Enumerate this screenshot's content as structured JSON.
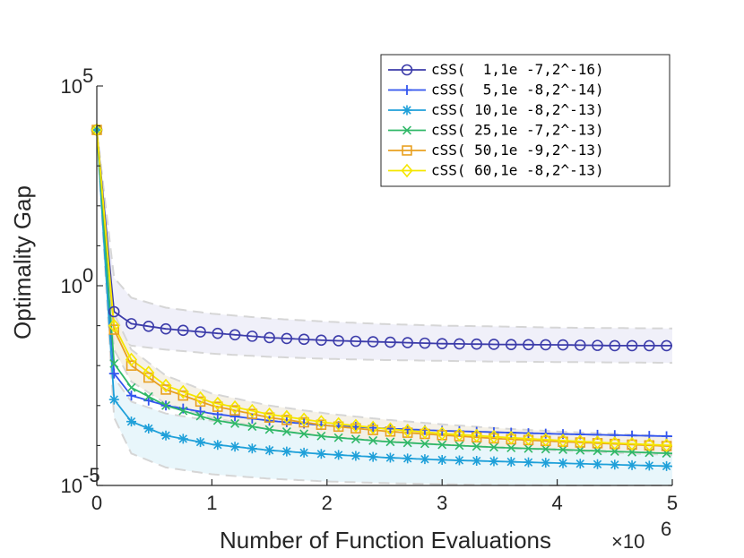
{
  "chart_data": {
    "type": "line",
    "xlabel": "Number of Function Evaluations",
    "x_multiplier": "×10^6",
    "ylabel": "Optimality Gap",
    "y_scale": "log",
    "xlim": [
      0,
      5
    ],
    "ylim_exponents": [
      -5,
      5
    ],
    "x_ticks": [
      "0",
      "1",
      "2",
      "3",
      "4",
      "5"
    ],
    "y_ticks": [
      {
        "exp": 5,
        "base": "10",
        "sup": "5"
      },
      {
        "exp": 0,
        "base": "10",
        "sup": "0"
      },
      {
        "exp": -5,
        "base": "10",
        "sup": "-5"
      }
    ],
    "legend_position": "top-right",
    "grid": false,
    "x": [
      0,
      0.15,
      0.3,
      0.6,
      1,
      1.5,
      2,
      2.5,
      3,
      3.5,
      4,
      4.5,
      5
    ],
    "series": [
      {
        "name": "cSS(  1,1e -7,2^-16)",
        "color": "#3c3caa",
        "marker": "circle",
        "marker_step": 0.15,
        "band_color": "#eeeef8",
        "log10_values": [
          3.9,
          -0.65,
          -0.95,
          -1.08,
          -1.18,
          -1.3,
          -1.37,
          -1.41,
          -1.45,
          -1.47,
          -1.48,
          -1.5,
          -1.5
        ],
        "log10_lower": [
          3.9,
          -1.3,
          -1.5,
          -1.6,
          -1.7,
          -1.78,
          -1.83,
          -1.86,
          -1.88,
          -1.9,
          -1.91,
          -1.92,
          -1.93
        ],
        "log10_upper": [
          3.9,
          0.2,
          -0.3,
          -0.55,
          -0.7,
          -0.82,
          -0.9,
          -0.96,
          -1.0,
          -1.02,
          -1.05,
          -1.06,
          -1.07
        ]
      },
      {
        "name": "cSS(  5,1e -8,2^-14)",
        "color": "#3355ee",
        "marker": "plus",
        "marker_step": 0.15,
        "log10_values": [
          3.9,
          -2.2,
          -2.75,
          -3.0,
          -3.2,
          -3.38,
          -3.5,
          -3.57,
          -3.63,
          -3.67,
          -3.71,
          -3.74,
          -3.77
        ]
      },
      {
        "name": "cSS( 10,1e -8,2^-13)",
        "color": "#1fa0d9",
        "marker": "star",
        "marker_step": 0.15,
        "band_color": "#e6f5fb",
        "log10_values": [
          3.9,
          -2.85,
          -3.4,
          -3.75,
          -3.97,
          -4.12,
          -4.22,
          -4.3,
          -4.36,
          -4.4,
          -4.44,
          -4.48,
          -4.52
        ],
        "log10_lower": [
          3.9,
          -3.3,
          -4.2,
          -4.55,
          -4.72,
          -4.83,
          -4.9,
          -4.94,
          -4.97,
          -4.99,
          -5.0,
          -5.0,
          -5.0
        ],
        "log10_upper": [
          3.9,
          -2.3,
          -2.9,
          -3.2,
          -3.38,
          -3.5,
          -3.6,
          -3.68,
          -3.74,
          -3.79,
          -3.84,
          -3.88,
          -3.92
        ]
      },
      {
        "name": "cSS( 25,1e -7,2^-13)",
        "color": "#30b868",
        "marker": "x",
        "marker_step": 0.15,
        "log10_values": [
          3.9,
          -1.95,
          -2.55,
          -3.0,
          -3.35,
          -3.6,
          -3.78,
          -3.9,
          -3.98,
          -4.05,
          -4.1,
          -4.15,
          -4.2
        ]
      },
      {
        "name": "cSS( 50,1e -9,2^-13)",
        "color": "#e8a020",
        "marker": "square",
        "marker_step": 0.15,
        "band_color": "#f4efe4",
        "log10_values": [
          3.9,
          -1.1,
          -2.0,
          -2.6,
          -3.0,
          -3.3,
          -3.5,
          -3.64,
          -3.74,
          -3.83,
          -3.9,
          -3.96,
          -4.02
        ],
        "log10_lower": [
          3.9,
          -1.6,
          -2.4,
          -2.95,
          -3.3,
          -3.6,
          -3.78,
          -3.9,
          -3.98,
          -4.06,
          -4.12,
          -4.18,
          -4.24
        ],
        "log10_upper": [
          3.9,
          -0.7,
          -1.6,
          -2.25,
          -2.7,
          -3.0,
          -3.2,
          -3.35,
          -3.47,
          -3.57,
          -3.65,
          -3.71,
          -3.77
        ]
      },
      {
        "name": "cSS( 60,1e -8,2^-13)",
        "color": "#f5e600",
        "marker": "diamond",
        "marker_step": 0.15,
        "log10_values": [
          3.9,
          -1.0,
          -1.85,
          -2.5,
          -2.92,
          -3.22,
          -3.43,
          -3.58,
          -3.7,
          -3.79,
          -3.87,
          -3.94,
          -4.0
        ]
      }
    ]
  }
}
